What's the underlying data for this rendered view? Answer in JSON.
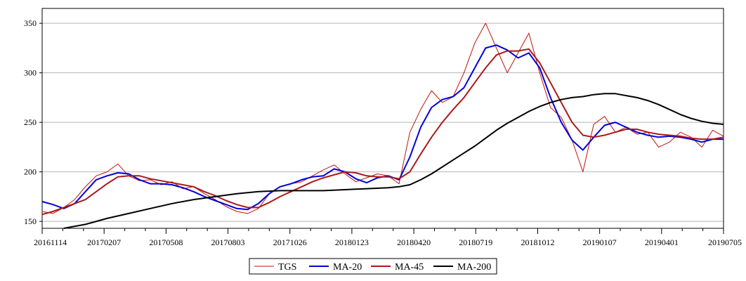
{
  "chart_data": {
    "type": "line",
    "title": "",
    "xlabel": "",
    "ylabel": "",
    "ylim": [
      143,
      365
    ],
    "yticks": [
      150,
      200,
      250,
      300,
      350
    ],
    "x_ticks": [
      "20161114",
      "20170207",
      "20170508",
      "20170803",
      "20171026",
      "20180123",
      "20180420",
      "20180719",
      "20181012",
      "20190107",
      "20190401",
      "20190705"
    ],
    "grid": true,
    "legend_position": "bottom-center",
    "series": [
      {
        "name": "TGS",
        "color": "#c0140a",
        "width": 1,
        "points": [
          [
            0,
            160
          ],
          [
            1,
            158
          ],
          [
            2,
            164
          ],
          [
            3,
            172
          ],
          [
            4,
            185
          ],
          [
            5,
            196
          ],
          [
            6,
            200
          ],
          [
            7,
            208
          ],
          [
            8,
            196
          ],
          [
            9,
            191
          ],
          [
            10,
            192
          ],
          [
            11,
            187
          ],
          [
            12,
            190
          ],
          [
            13,
            183
          ],
          [
            14,
            185
          ],
          [
            15,
            178
          ],
          [
            16,
            172
          ],
          [
            17,
            165
          ],
          [
            18,
            160
          ],
          [
            19,
            158
          ],
          [
            20,
            163
          ],
          [
            21,
            178
          ],
          [
            22,
            185
          ],
          [
            23,
            188
          ],
          [
            24,
            190
          ],
          [
            25,
            196
          ],
          [
            26,
            202
          ],
          [
            27,
            207
          ],
          [
            28,
            198
          ],
          [
            29,
            190
          ],
          [
            30,
            194
          ],
          [
            31,
            198
          ],
          [
            32,
            196
          ],
          [
            33,
            188
          ],
          [
            34,
            240
          ],
          [
            35,
            263
          ],
          [
            36,
            282
          ],
          [
            37,
            270
          ],
          [
            38,
            276
          ],
          [
            39,
            300
          ],
          [
            40,
            330
          ],
          [
            41,
            350
          ],
          [
            42,
            325
          ],
          [
            43,
            300
          ],
          [
            44,
            320
          ],
          [
            45,
            340
          ],
          [
            46,
            300
          ],
          [
            47,
            265
          ],
          [
            48,
            255
          ],
          [
            49,
            232
          ],
          [
            50,
            200
          ],
          [
            51,
            248
          ],
          [
            52,
            256
          ],
          [
            53,
            240
          ],
          [
            54,
            245
          ],
          [
            55,
            238
          ],
          [
            56,
            240
          ],
          [
            57,
            225
          ],
          [
            58,
            230
          ],
          [
            59,
            240
          ],
          [
            60,
            235
          ],
          [
            61,
            225
          ],
          [
            62,
            242
          ],
          [
            63,
            236
          ]
        ]
      },
      {
        "name": "MA-20",
        "color": "#0000dd",
        "width": 2,
        "points": [
          [
            0,
            170
          ],
          [
            1,
            167
          ],
          [
            2,
            163
          ],
          [
            3,
            168
          ],
          [
            4,
            180
          ],
          [
            5,
            192
          ],
          [
            6,
            196
          ],
          [
            7,
            199
          ],
          [
            8,
            198
          ],
          [
            9,
            192
          ],
          [
            10,
            188
          ],
          [
            11,
            188
          ],
          [
            12,
            187
          ],
          [
            13,
            184
          ],
          [
            14,
            180
          ],
          [
            15,
            175
          ],
          [
            16,
            171
          ],
          [
            17,
            167
          ],
          [
            18,
            163
          ],
          [
            19,
            162
          ],
          [
            20,
            168
          ],
          [
            21,
            178
          ],
          [
            22,
            185
          ],
          [
            23,
            188
          ],
          [
            24,
            192
          ],
          [
            25,
            195
          ],
          [
            26,
            196
          ],
          [
            27,
            203
          ],
          [
            28,
            200
          ],
          [
            29,
            193
          ],
          [
            30,
            189
          ],
          [
            31,
            194
          ],
          [
            32,
            196
          ],
          [
            33,
            192
          ],
          [
            34,
            215
          ],
          [
            35,
            245
          ],
          [
            36,
            265
          ],
          [
            37,
            273
          ],
          [
            38,
            276
          ],
          [
            39,
            285
          ],
          [
            40,
            305
          ],
          [
            41,
            325
          ],
          [
            42,
            328
          ],
          [
            43,
            323
          ],
          [
            44,
            315
          ],
          [
            45,
            320
          ],
          [
            46,
            305
          ],
          [
            47,
            275
          ],
          [
            48,
            250
          ],
          [
            49,
            232
          ],
          [
            50,
            222
          ],
          [
            51,
            235
          ],
          [
            52,
            247
          ],
          [
            53,
            250
          ],
          [
            54,
            245
          ],
          [
            55,
            240
          ],
          [
            56,
            237
          ],
          [
            57,
            235
          ],
          [
            58,
            236
          ],
          [
            59,
            235
          ],
          [
            60,
            233
          ],
          [
            61,
            230
          ],
          [
            62,
            233
          ],
          [
            63,
            233
          ]
        ]
      },
      {
        "name": "MA-45",
        "color": "#aa1a1a",
        "width": 2,
        "points": [
          [
            0,
            157
          ],
          [
            1,
            160
          ],
          [
            2,
            164
          ],
          [
            3,
            168
          ],
          [
            4,
            172
          ],
          [
            5,
            180
          ],
          [
            6,
            188
          ],
          [
            7,
            195
          ],
          [
            8,
            196
          ],
          [
            9,
            196
          ],
          [
            10,
            193
          ],
          [
            11,
            191
          ],
          [
            12,
            189
          ],
          [
            13,
            187
          ],
          [
            14,
            185
          ],
          [
            15,
            180
          ],
          [
            16,
            176
          ],
          [
            17,
            171
          ],
          [
            18,
            167
          ],
          [
            19,
            164
          ],
          [
            20,
            164
          ],
          [
            21,
            169
          ],
          [
            22,
            175
          ],
          [
            23,
            180
          ],
          [
            24,
            185
          ],
          [
            25,
            190
          ],
          [
            26,
            194
          ],
          [
            27,
            197
          ],
          [
            28,
            200
          ],
          [
            29,
            199
          ],
          [
            30,
            196
          ],
          [
            31,
            195
          ],
          [
            32,
            195
          ],
          [
            33,
            193
          ],
          [
            34,
            200
          ],
          [
            35,
            218
          ],
          [
            36,
            235
          ],
          [
            37,
            250
          ],
          [
            38,
            263
          ],
          [
            39,
            275
          ],
          [
            40,
            290
          ],
          [
            41,
            305
          ],
          [
            42,
            318
          ],
          [
            43,
            322
          ],
          [
            44,
            322
          ],
          [
            45,
            324
          ],
          [
            46,
            310
          ],
          [
            47,
            290
          ],
          [
            48,
            270
          ],
          [
            49,
            250
          ],
          [
            50,
            237
          ],
          [
            51,
            235
          ],
          [
            52,
            237
          ],
          [
            53,
            240
          ],
          [
            54,
            243
          ],
          [
            55,
            243
          ],
          [
            56,
            240
          ],
          [
            57,
            238
          ],
          [
            58,
            237
          ],
          [
            59,
            236
          ],
          [
            60,
            234
          ],
          [
            61,
            233
          ],
          [
            62,
            233
          ],
          [
            63,
            235
          ]
        ]
      },
      {
        "name": "MA-200",
        "color": "#000000",
        "width": 2,
        "points": [
          [
            2,
            143
          ],
          [
            4,
            147
          ],
          [
            6,
            153
          ],
          [
            8,
            158
          ],
          [
            10,
            163
          ],
          [
            12,
            168
          ],
          [
            14,
            172
          ],
          [
            16,
            175
          ],
          [
            18,
            178
          ],
          [
            20,
            180
          ],
          [
            22,
            181
          ],
          [
            24,
            181
          ],
          [
            26,
            181
          ],
          [
            28,
            182
          ],
          [
            30,
            183
          ],
          [
            32,
            184
          ],
          [
            33,
            185
          ],
          [
            34,
            187
          ],
          [
            35,
            192
          ],
          [
            36,
            198
          ],
          [
            37,
            205
          ],
          [
            38,
            212
          ],
          [
            39,
            219
          ],
          [
            40,
            226
          ],
          [
            41,
            234
          ],
          [
            42,
            242
          ],
          [
            43,
            249
          ],
          [
            44,
            255
          ],
          [
            45,
            261
          ],
          [
            46,
            266
          ],
          [
            47,
            270
          ],
          [
            48,
            273
          ],
          [
            49,
            275
          ],
          [
            50,
            276
          ],
          [
            51,
            278
          ],
          [
            52,
            279
          ],
          [
            53,
            279
          ],
          [
            54,
            277
          ],
          [
            55,
            275
          ],
          [
            56,
            272
          ],
          [
            57,
            268
          ],
          [
            58,
            263
          ],
          [
            59,
            258
          ],
          [
            60,
            254
          ],
          [
            61,
            251
          ],
          [
            62,
            249
          ],
          [
            63,
            248
          ]
        ]
      }
    ]
  }
}
